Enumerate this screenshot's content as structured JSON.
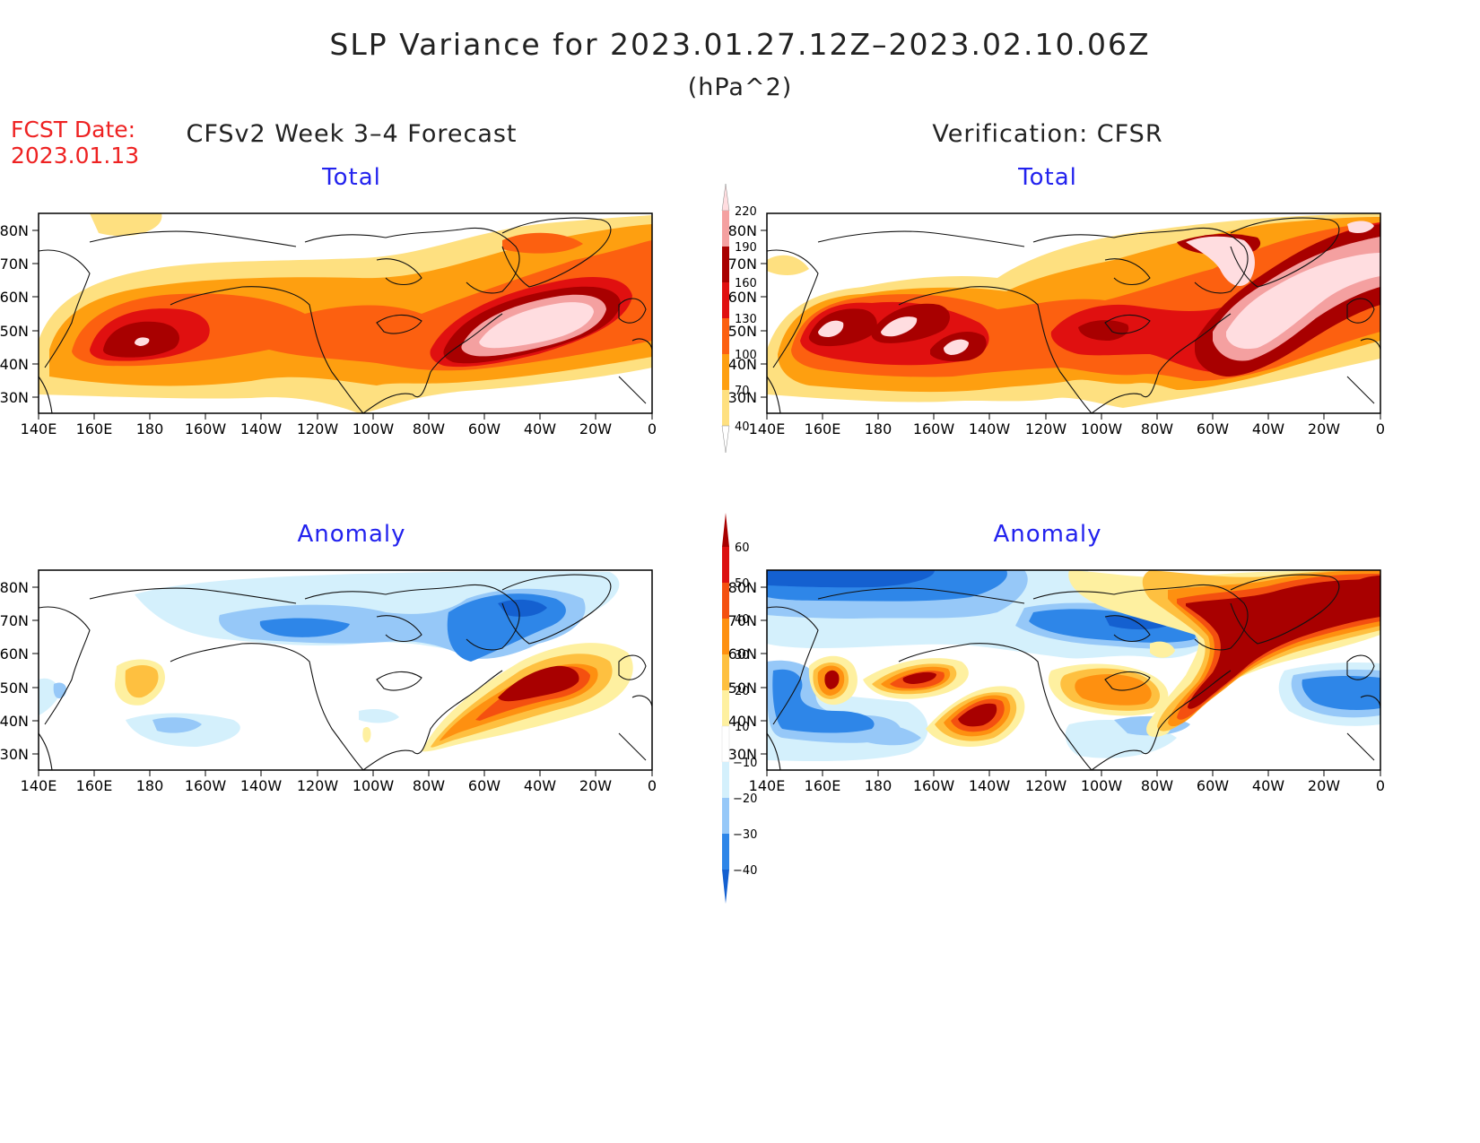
{
  "header": {
    "title": "SLP Variance for 2023.01.27.12Z–2023.02.10.06Z",
    "unit": "(hPa^2)",
    "fcst_label": "FCST Date:",
    "fcst_date": "2023.01.13",
    "left_column_title": "CFSv2 Week 3–4 Forecast",
    "right_column_title": "Verification: CFSR"
  },
  "panels": {
    "fcst_total": {
      "title": "Total"
    },
    "verif_total": {
      "title": "Total"
    },
    "fcst_anomaly": {
      "title": "Anomaly"
    },
    "verif_anomaly": {
      "title": "Anomaly"
    }
  },
  "axes": {
    "lon_labels": [
      "140E",
      "160E",
      "180",
      "160W",
      "140W",
      "120W",
      "100W",
      "80W",
      "60W",
      "40W",
      "20W",
      "0"
    ],
    "lat_labels_total": [
      "80N",
      "70N",
      "60N",
      "50N",
      "40N",
      "30N"
    ],
    "lat_labels_anomaly": [
      "80N",
      "70N",
      "60N",
      "50N",
      "40N",
      "30N"
    ],
    "lon_range": [
      140,
      360
    ],
    "lat_range": [
      25,
      85
    ]
  },
  "colorbar_total": {
    "labels": [
      "40",
      "70",
      "100",
      "130",
      "160",
      "190",
      "220"
    ],
    "colors": [
      "#ffffff",
      "#fee080",
      "#fe9f10",
      "#fc6010",
      "#e01010",
      "#a80000",
      "#f4a0a0",
      "#ffdde0"
    ]
  },
  "colorbar_anomaly": {
    "labels": [
      "−40",
      "−30",
      "−20",
      "−10",
      "10",
      "20",
      "30",
      "40",
      "50",
      "60"
    ],
    "colors": [
      "#1460d0",
      "#2e86e8",
      "#96c8f8",
      "#d4f0fc",
      "#ffffff",
      "#fef0a0",
      "#fec040",
      "#fe9010",
      "#f45010",
      "#dc1010",
      "#a80000"
    ]
  }
}
